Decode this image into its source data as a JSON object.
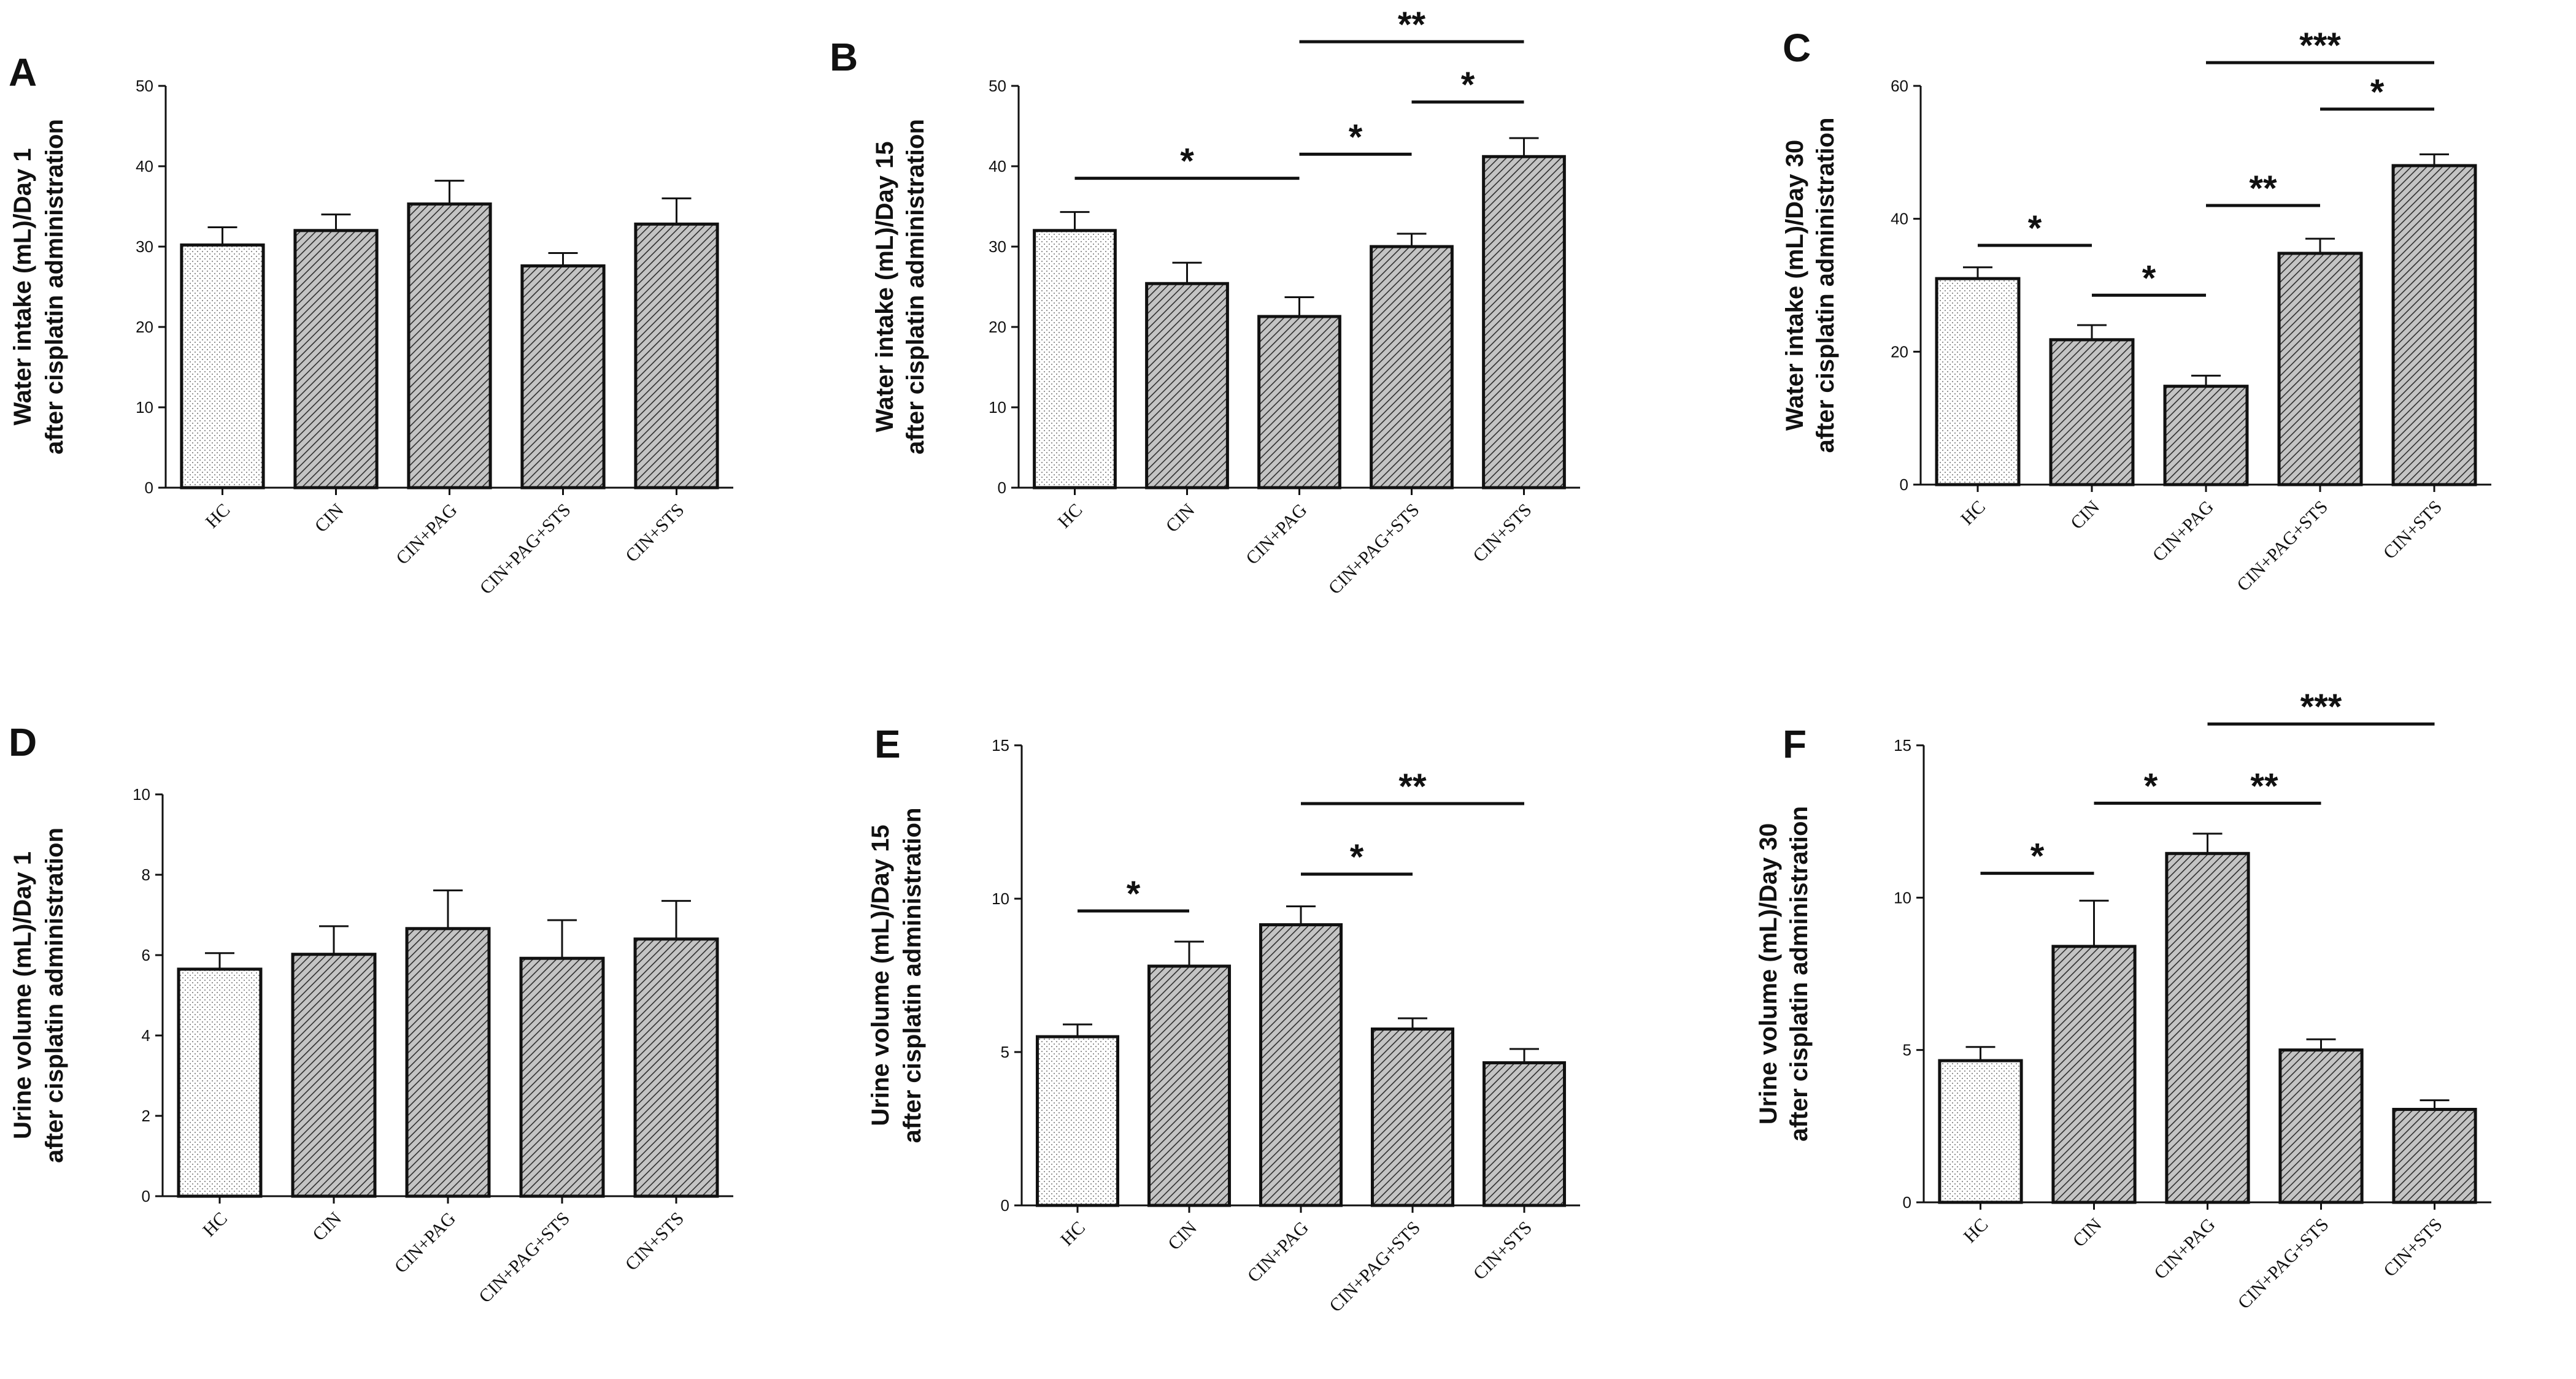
{
  "figure": {
    "categories": [
      "HC",
      "CIN",
      "CIN+PAG",
      "CIN+PAG+STS",
      "CIN+STS"
    ]
  },
  "chart_data": [
    {
      "panel": "A",
      "type": "bar",
      "ylabel_line1": "Water intake (mL)/Day 1",
      "ylabel_line2": "after cisplatin administration",
      "categories": [
        "HC",
        "CIN",
        "CIN+PAG",
        "CIN+PAG+STS",
        "CIN+STS"
      ],
      "values": [
        30.2,
        32.0,
        35.3,
        27.6,
        32.8
      ],
      "errors": [
        2.2,
        2.0,
        2.9,
        1.6,
        3.2
      ],
      "ylim": [
        0,
        50
      ],
      "yticks": [
        0,
        10,
        20,
        30,
        40,
        50
      ],
      "significance": []
    },
    {
      "panel": "B",
      "type": "bar",
      "ylabel_line1": "Water intake (mL)/Day 15",
      "ylabel_line2": "after cisplatin administration",
      "categories": [
        "HC",
        "CIN",
        "CIN+PAG",
        "CIN+PAG+STS",
        "CIN+STS"
      ],
      "values": [
        32.0,
        25.4,
        21.3,
        30.0,
        41.2
      ],
      "errors": [
        2.3,
        2.6,
        2.4,
        1.6,
        2.3
      ],
      "ylim": [
        0,
        50
      ],
      "yticks": [
        0,
        10,
        20,
        30,
        40,
        50
      ],
      "significance": [
        {
          "from": 0,
          "to": 2,
          "label": "*",
          "level": 38.5
        },
        {
          "from": 2,
          "to": 3,
          "label": "*",
          "level": 41.5
        },
        {
          "from": 3,
          "to": 4,
          "label": "*",
          "level": 48.0
        },
        {
          "from": 2,
          "to": 4,
          "label": "**",
          "level": 55.5
        }
      ]
    },
    {
      "panel": "C",
      "type": "bar",
      "ylabel_line1": "Water intake (mL)/Day 30",
      "ylabel_line2": "after cisplatin administration",
      "categories": [
        "HC",
        "CIN",
        "CIN+PAG",
        "CIN+PAG+STS",
        "CIN+STS"
      ],
      "values": [
        31.0,
        21.8,
        14.8,
        34.8,
        48.0
      ],
      "errors": [
        1.7,
        2.2,
        1.6,
        2.2,
        1.7
      ],
      "ylim": [
        0,
        60
      ],
      "yticks": [
        0,
        20,
        40,
        60
      ],
      "significance": [
        {
          "from": 0,
          "to": 1,
          "label": "*",
          "level": 36.0
        },
        {
          "from": 1,
          "to": 2,
          "label": "*",
          "level": 28.5
        },
        {
          "from": 2,
          "to": 3,
          "label": "**",
          "level": 42.0
        },
        {
          "from": 3,
          "to": 4,
          "label": "*",
          "level": 56.5
        },
        {
          "from": 2,
          "to": 4,
          "label": "***",
          "level": 63.5
        }
      ]
    },
    {
      "panel": "D",
      "type": "bar",
      "ylabel_line1": "Urine volume (mL)/Day 1",
      "ylabel_line2": "after cisplatin administration",
      "categories": [
        "HC",
        "CIN",
        "CIN+PAG",
        "CIN+PAG+STS",
        "CIN+STS"
      ],
      "values": [
        5.65,
        6.02,
        6.66,
        5.92,
        6.4
      ],
      "errors": [
        0.4,
        0.7,
        0.95,
        0.95,
        0.95
      ],
      "ylim": [
        0,
        10
      ],
      "yticks": [
        0,
        2,
        4,
        6,
        8,
        10
      ],
      "significance": []
    },
    {
      "panel": "E",
      "type": "bar",
      "ylabel_line1": "Urine volume (mL)/Day 15",
      "ylabel_line2": "after cisplatin administration",
      "categories": [
        "HC",
        "CIN",
        "CIN+PAG",
        "CIN+PAG+STS",
        "CIN+STS"
      ],
      "values": [
        5.5,
        7.8,
        9.15,
        5.75,
        4.65
      ],
      "errors": [
        0.4,
        0.8,
        0.6,
        0.35,
        0.45
      ],
      "ylim": [
        0,
        15
      ],
      "yticks": [
        0,
        5,
        10,
        15
      ],
      "significance": [
        {
          "from": 0,
          "to": 1,
          "label": "*",
          "level": 9.6
        },
        {
          "from": 2,
          "to": 3,
          "label": "*",
          "level": 10.8
        },
        {
          "from": 2,
          "to": 4,
          "label": "**",
          "level": 13.1
        }
      ]
    },
    {
      "panel": "F",
      "type": "bar",
      "ylabel_line1": "Urine volume (mL)/Day 30",
      "ylabel_line2": "after cisplatin administration",
      "categories": [
        "HC",
        "CIN",
        "CIN+PAG",
        "CIN+PAG+STS",
        "CIN+STS"
      ],
      "values": [
        4.65,
        8.4,
        11.45,
        5.0,
        3.05
      ],
      "errors": [
        0.45,
        1.5,
        0.65,
        0.35,
        0.3
      ],
      "ylim": [
        0,
        15
      ],
      "yticks": [
        0,
        5,
        10,
        15
      ],
      "significance": [
        {
          "from": 0,
          "to": 1,
          "label": "*",
          "level": 10.8
        },
        {
          "from": 1,
          "to": 2,
          "label": "*",
          "level": 13.1
        },
        {
          "from": 2,
          "to": 3,
          "label": "**",
          "level": 13.1
        },
        {
          "from": 2,
          "to": 4,
          "label": "***",
          "level": 15.7
        }
      ]
    }
  ]
}
